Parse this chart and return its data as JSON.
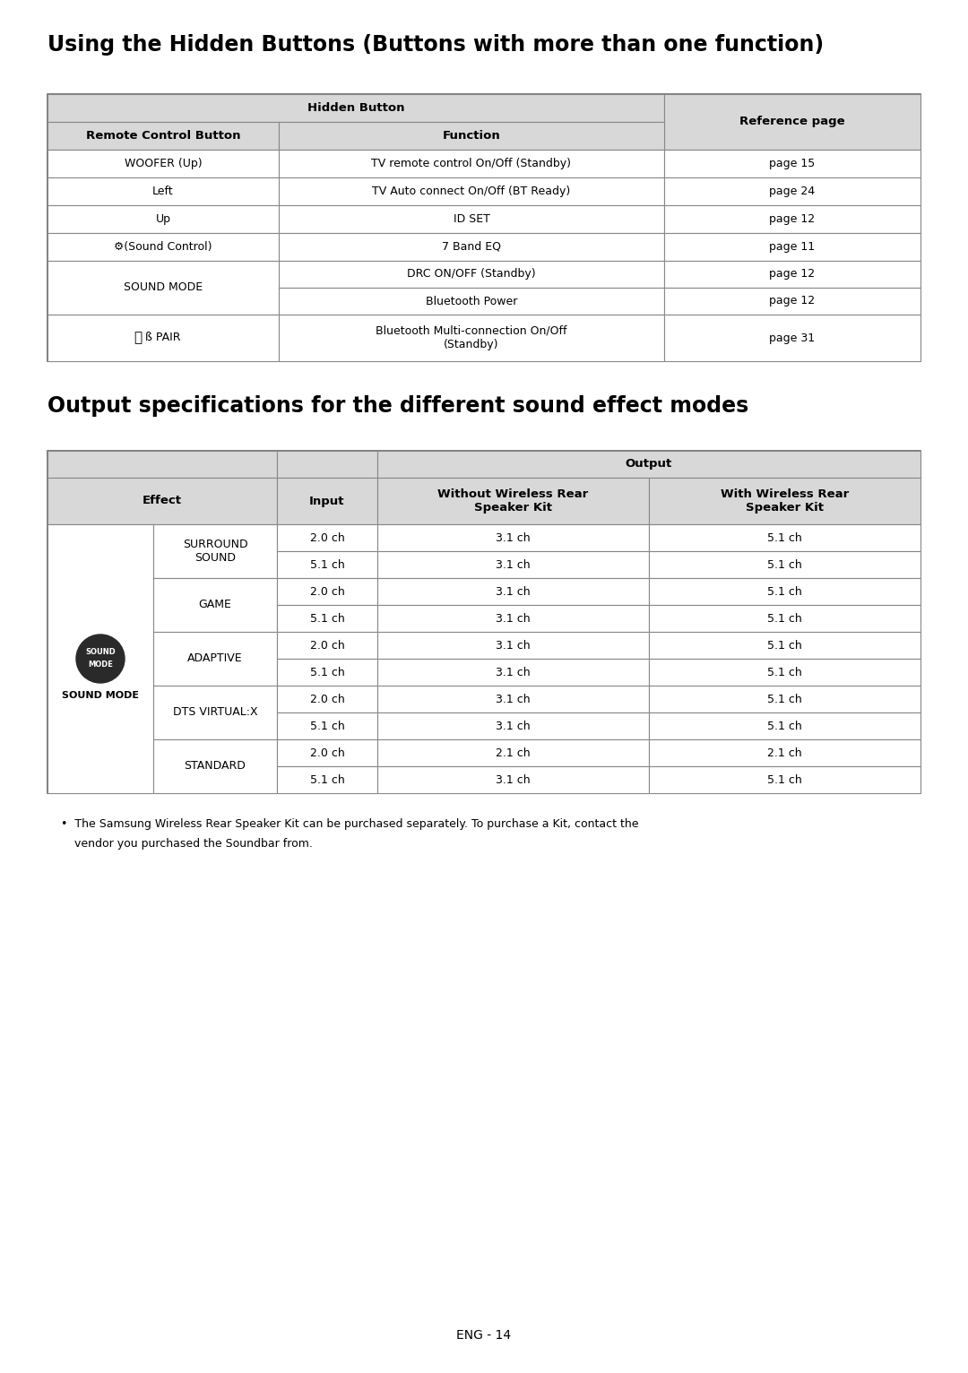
{
  "bg_color": "#ffffff",
  "text_color": "#000000",
  "header_bg": "#d8d8d8",
  "border_color": "#888888",
  "title1": "Using the Hidden Buttons (Buttons with more than one function)",
  "title2": "Output specifications for the different sound effect modes",
  "footer": "ENG - 14",
  "note1": "The Samsung Wireless Rear Speaker Kit can be purchased separately. To purchase a Kit, contact the",
  "note2": "vendor you purchased the Soundbar from.",
  "t1_rows": [
    [
      "WOOFER (Up)",
      "TV remote control On/Off (Standby)",
      "page 15"
    ],
    [
      "Left",
      "TV Auto connect On/Off (BT Ready)",
      "page 24"
    ],
    [
      "Up",
      "ID SET",
      "page 12"
    ],
    [
      "GEAR(Sound Control)",
      "7 Band EQ",
      "page 11"
    ],
    [
      "SOUND MODE",
      "DRC ON/OFF (Standby)",
      "page 12"
    ],
    [
      "SOUND MODE",
      "Bluetooth Power",
      "page 12"
    ],
    [
      "BT PAIR",
      "Bluetooth Multi-connection On/Off\n(Standby)",
      "page 31"
    ]
  ],
  "t2_effects": [
    "SURROUND\nSOUND",
    "GAME",
    "ADAPTIVE",
    "DTS VIRTUAL:X",
    "STANDARD"
  ],
  "t2_rows": [
    [
      "2.0 ch",
      "3.1 ch",
      "5.1 ch"
    ],
    [
      "5.1 ch",
      "3.1 ch",
      "5.1 ch"
    ],
    [
      "2.0 ch",
      "3.1 ch",
      "5.1 ch"
    ],
    [
      "5.1 ch",
      "3.1 ch",
      "5.1 ch"
    ],
    [
      "2.0 ch",
      "3.1 ch",
      "5.1 ch"
    ],
    [
      "5.1 ch",
      "3.1 ch",
      "5.1 ch"
    ],
    [
      "2.0 ch",
      "3.1 ch",
      "5.1 ch"
    ],
    [
      "5.1 ch",
      "3.1 ch",
      "5.1 ch"
    ],
    [
      "2.0 ch",
      "2.1 ch",
      "2.1 ch"
    ],
    [
      "5.1 ch",
      "3.1 ch",
      "5.1 ch"
    ]
  ]
}
